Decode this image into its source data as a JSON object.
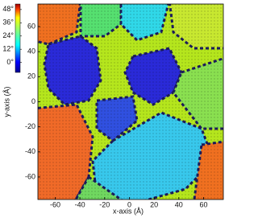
{
  "chart_data": {
    "type": "heatmap",
    "xlabel": "x-axis (Å)",
    "ylabel": "y-axis (Å)",
    "xlim": [
      -74,
      76
    ],
    "ylim": [
      -78,
      78
    ],
    "xticks": [
      -60,
      -40,
      -20,
      0,
      20,
      40,
      60
    ],
    "yticks": [
      -60,
      -40,
      -20,
      0,
      20,
      40,
      60
    ],
    "colorbar": {
      "lim": [
        -9,
        53
      ],
      "ticks": [
        {
          "value": 0,
          "label": "0°"
        },
        {
          "value": 12,
          "label": "12°"
        },
        {
          "value": 24,
          "label": "24°"
        },
        {
          "value": 36,
          "label": "36°"
        },
        {
          "value": 48,
          "label": "48°"
        }
      ]
    }
  }
}
